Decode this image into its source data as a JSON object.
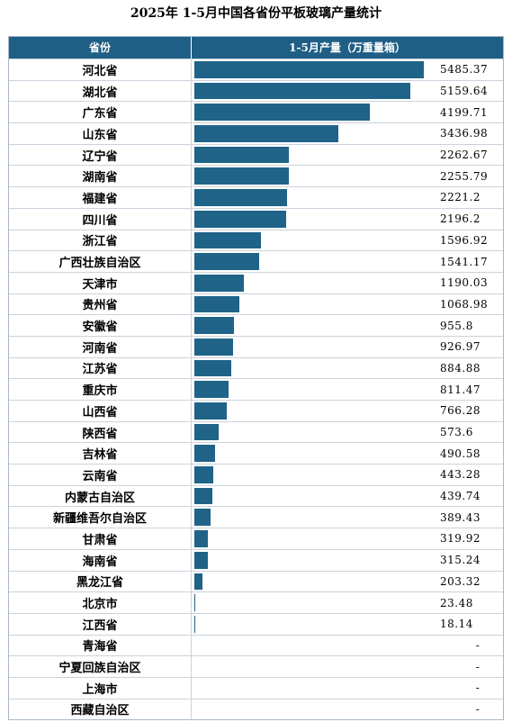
{
  "title": "2025年 1-5月中国各省份平板玻璃产量统计",
  "header": {
    "province": "省份",
    "value": "1-5月产量（万重量箱）"
  },
  "colors": {
    "header_bg": "#1f5f86",
    "bar": "#1f6388"
  },
  "chart_data": {
    "type": "bar",
    "orientation": "horizontal",
    "max_value": 5485.37,
    "categories": [
      "河北省",
      "湖北省",
      "广东省",
      "山东省",
      "辽宁省",
      "湖南省",
      "福建省",
      "四川省",
      "浙江省",
      "广西壮族自治区",
      "天津市",
      "贵州省",
      "安徽省",
      "河南省",
      "江苏省",
      "重庆市",
      "山西省",
      "陕西省",
      "吉林省",
      "云南省",
      "内蒙古自治区",
      "新疆维吾尔自治区",
      "甘肃省",
      "海南省",
      "黑龙江省",
      "北京市",
      "江西省",
      "青海省",
      "宁夏回族自治区",
      "上海市",
      "西藏自治区"
    ],
    "values": [
      5485.37,
      5159.64,
      4199.71,
      3436.98,
      2262.67,
      2255.79,
      2221.2,
      2196.2,
      1596.92,
      1541.17,
      1190.03,
      1068.98,
      955.8,
      926.97,
      884.88,
      811.47,
      766.28,
      573.6,
      490.58,
      443.28,
      439.74,
      389.43,
      319.92,
      315.24,
      203.32,
      23.48,
      18.14,
      null,
      null,
      null,
      null
    ],
    "labels": [
      "5485.37",
      "5159.64",
      "4199.71",
      "3436.98",
      "2262.67",
      "2255.79",
      "2221.2",
      "2196.2",
      "1596.92",
      "1541.17",
      "1190.03",
      "1068.98",
      "955.8",
      "926.97",
      "884.88",
      "811.47",
      "766.28",
      "573.6",
      "490.58",
      "443.28",
      "439.74",
      "389.43",
      "319.92",
      "315.24",
      "203.32",
      "23.48",
      "18.14",
      "-",
      "-",
      "-",
      "-"
    ]
  }
}
